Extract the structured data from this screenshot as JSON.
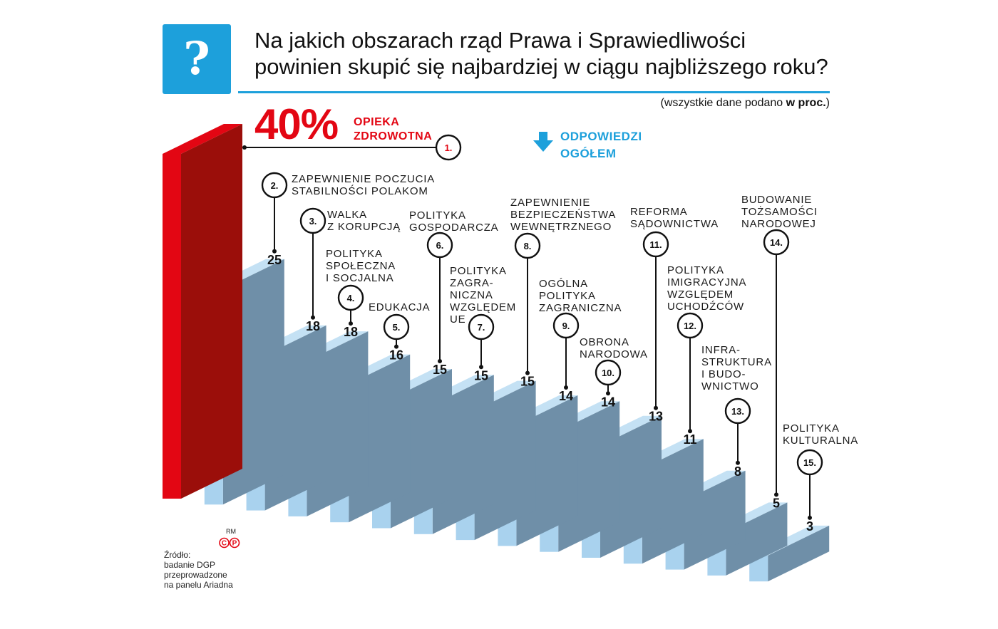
{
  "header": {
    "icon": "question-mark-icon",
    "icon_glyph": "?",
    "title_line1": "Na jakich obszarach rząd Prawa i Sprawiedliwości",
    "title_line2": "powinien skupić się najbardziej w ciągu najbliższego roku?",
    "note_prefix": "(wszystkie dane podano ",
    "note_bold": "w proc.",
    "note_suffix": ")",
    "accent_color": "#1da0db"
  },
  "highlight": {
    "value_label": "40%",
    "label_line1": "OPIEKA",
    "label_line2": "ZDROWOTNA",
    "color": "#e30613"
  },
  "legend": {
    "line1": "ODPOWIEDZI",
    "line2": "OGÓŁEM",
    "icon": "arrow-down-icon"
  },
  "footer": {
    "rm": "RM",
    "cp_icon": "copyright-cp-icon",
    "source_lines": [
      "Źródło:",
      "badanie DGP",
      "przeprowadzone",
      "na panelu Ariadna"
    ]
  },
  "chart_data": {
    "type": "bar",
    "categories": [
      "OPIEKA ZDROWOTNA",
      "ZAPEWNIENIE POCZUCIA STABILNOŚCI POLAKOM",
      "WALKA Z KORUPCJĄ",
      "POLITYKA SPOŁECZNA I SOCJALNA",
      "EDUKACJA",
      "POLITYKA GOSPODARCZA",
      "POLITYKA ZAGRA-NICZNA WZGLĘDEM UE",
      "ZAPEWNIENIE BEZPIECZEŃSTWA WEWNĘTRZNEGO",
      "OGÓLNA POLITYKA ZAGRANICZNA",
      "OBRONA NARODOWA",
      "REFORMA SĄDOWNICTWA",
      "POLITYKA IMIGRACYJNA WZGLĘDEM UCHODŹCÓW",
      "INFRA-STRUKTURA I BUDO-WNICTWO",
      "BUDOWANIE TOŻSAMOŚCI NARODOWEJ",
      "POLITYKA KULTURALNA"
    ],
    "ranks": [
      "1.",
      "2.",
      "3.",
      "4.",
      "5.",
      "6.",
      "7.",
      "8.",
      "9.",
      "10.",
      "11.",
      "12.",
      "13.",
      "14.",
      "15."
    ],
    "values": [
      40,
      25,
      18,
      18,
      16,
      15,
      15,
      15,
      14,
      14,
      13,
      11,
      8,
      5,
      3
    ],
    "label_lines": [
      [
        "OPIEKA",
        "ZDROWOTNA"
      ],
      [
        "ZAPEWNIENIE POCZUCIA",
        "STABILNOŚCI POLAKOM"
      ],
      [
        "WALKA",
        "Z KORUPCJĄ"
      ],
      [
        "POLITYKA",
        "SPOŁECZNA",
        "I SOCJALNA"
      ],
      [
        "EDUKACJA"
      ],
      [
        "POLITYKA",
        "GOSPODARCZA"
      ],
      [
        "POLITYKA",
        "ZAGRA-",
        "NICZNA",
        "WZGLĘDEM",
        "UE"
      ],
      [
        "ZAPEWNIENIE",
        "BEZPIECZEŃSTWA",
        "WEWNĘTRZNEGO"
      ],
      [
        "OGÓLNA",
        "POLITYKA",
        "ZAGRANICZNA"
      ],
      [
        "OBRONA",
        "NARODOWA"
      ],
      [
        "REFORMA",
        "SĄDOWNICTWA"
      ],
      [
        "POLITYKA",
        "IMIGRACYJNA",
        "WZGLĘDEM",
        "UCHODŹCÓW"
      ],
      [
        "INFRA-",
        "STRUKTURA",
        "I BUDO-",
        "WNICTWO"
      ],
      [
        "BUDOWANIE",
        "TOŻSAMOŚCI",
        "NARODOWEJ"
      ],
      [
        "POLITYKA",
        "KULTURALNA"
      ]
    ],
    "colors": {
      "highlight_front": "#e30613",
      "highlight_side": "#9b0e0a",
      "front": "#a9d2ee",
      "side": "#6f8fa8",
      "top": "#c4e1f4"
    },
    "title": "Na jakich obszarach rząd Prawa i Sprawiedliwości powinien skupić się najbardziej w ciągu najbliższego roku?",
    "ylabel": "",
    "xlabel": ""
  }
}
